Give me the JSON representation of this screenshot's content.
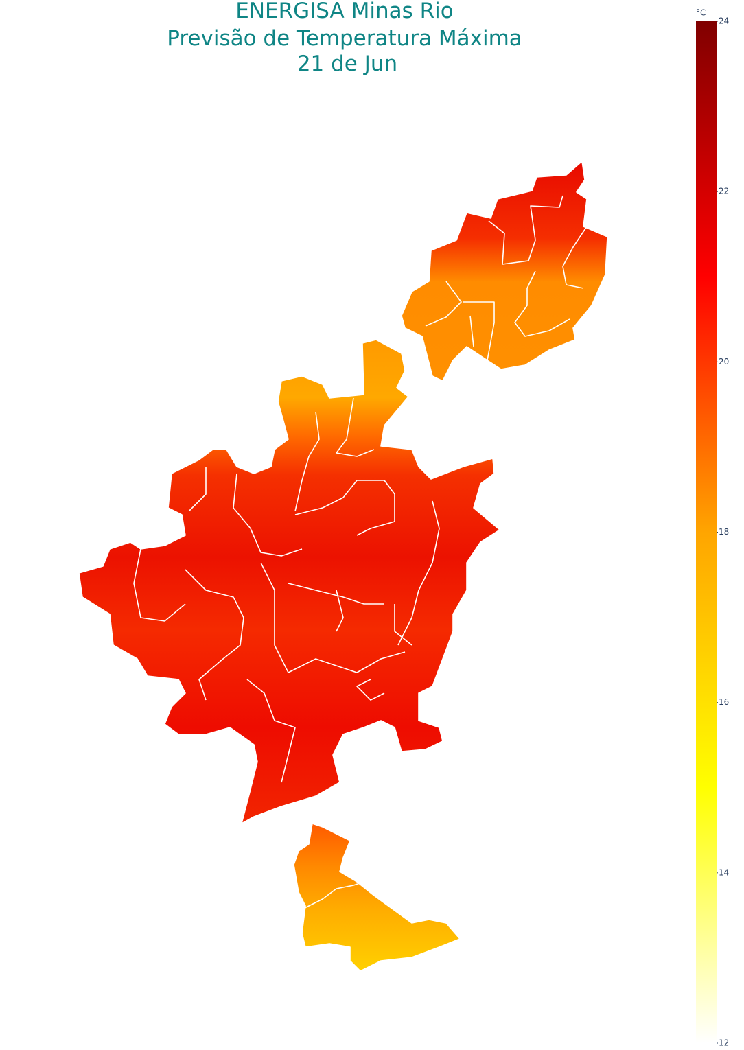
{
  "map": {
    "title": [
      "ENERGISA Minas Rio",
      "Previsão de Temperatura Máxima",
      "21 de Jun"
    ],
    "colorbar": {
      "label": "°C",
      "range": [
        12,
        24
      ],
      "ticks": [
        12,
        14,
        16,
        18,
        20,
        22,
        24
      ]
    }
  }
}
